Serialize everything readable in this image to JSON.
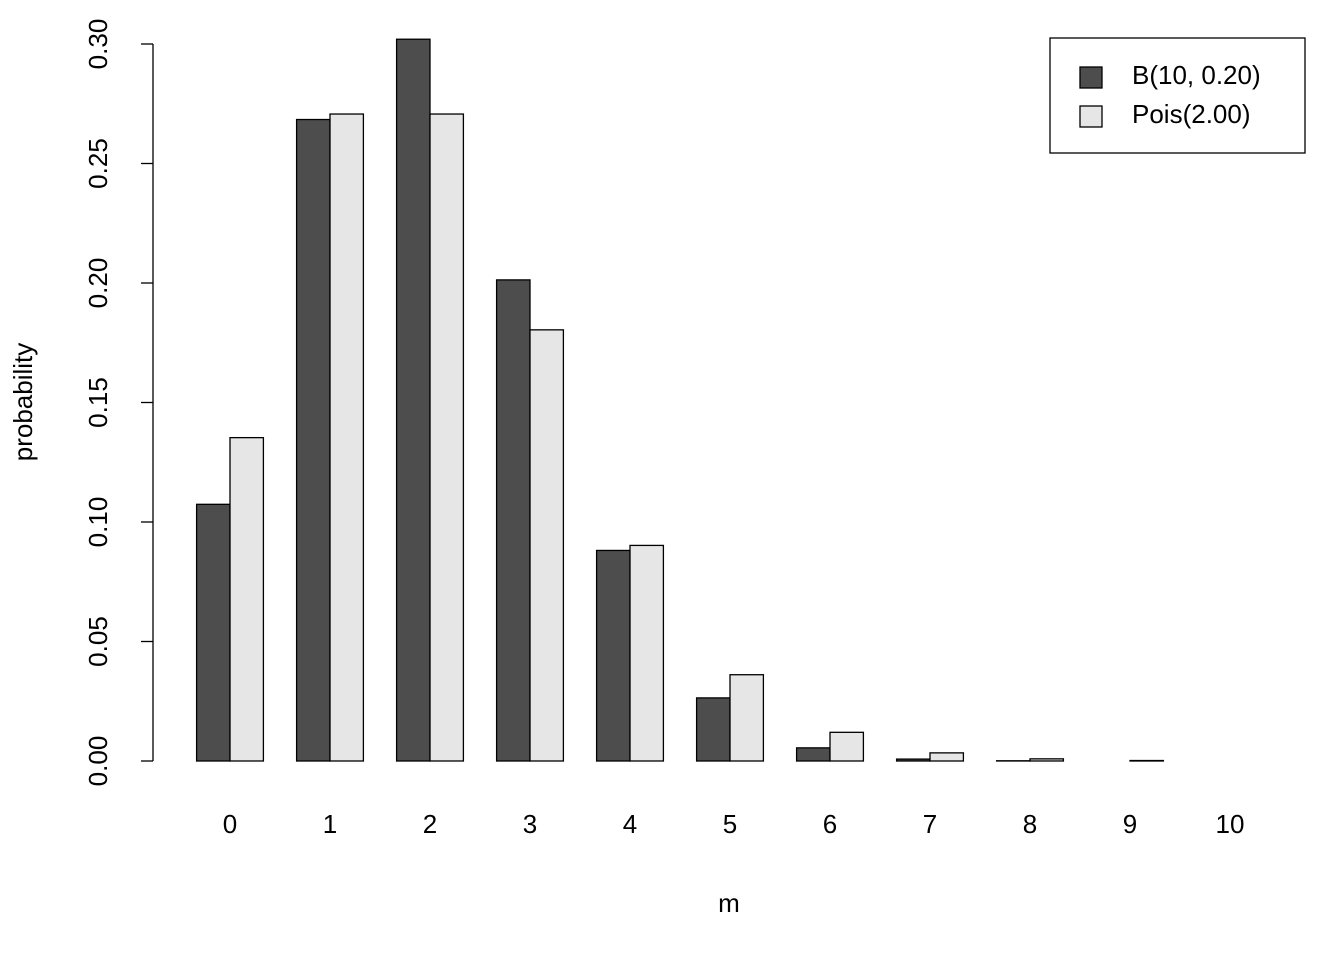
{
  "chart_data": {
    "type": "bar",
    "x_label": "m",
    "y_label": "probability",
    "categories": [
      "0",
      "1",
      "2",
      "3",
      "4",
      "5",
      "6",
      "7",
      "8",
      "9",
      "10"
    ],
    "series": [
      {
        "name": "B(10, 0.20)",
        "color": "#4d4d4d",
        "values": [
          0.1074,
          0.2684,
          0.302,
          0.2013,
          0.0881,
          0.0264,
          0.0055,
          0.0008,
          0.0001,
          0.0,
          0.0
        ]
      },
      {
        "name": "Pois(2.00)",
        "color": "#e6e6e6",
        "values": [
          0.1353,
          0.2707,
          0.2707,
          0.1804,
          0.0902,
          0.0361,
          0.012,
          0.0034,
          0.0009,
          0.0002,
          0.0
        ]
      }
    ],
    "ylim": [
      0,
      0.3
    ],
    "yticks": [
      {
        "value": 0,
        "label": "0.00"
      },
      {
        "value": 0.05,
        "label": "0.05"
      },
      {
        "value": 0.1,
        "label": "0.10"
      },
      {
        "value": 0.15,
        "label": "0.15"
      },
      {
        "value": 0.2,
        "label": "0.20"
      },
      {
        "value": 0.25,
        "label": "0.25"
      },
      {
        "value": 0.3,
        "label": "0.30"
      }
    ],
    "legend": "topright"
  }
}
